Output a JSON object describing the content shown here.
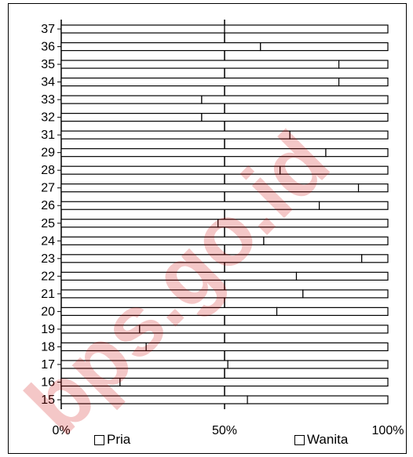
{
  "chart_data": {
    "type": "bar",
    "stacked": "percent",
    "orientation": "horizontal",
    "categories": [
      "15",
      "16",
      "17",
      "18",
      "19",
      "20",
      "21",
      "22",
      "23",
      "24",
      "25",
      "26",
      "27",
      "28",
      "29",
      "31",
      "32",
      "33",
      "34",
      "35",
      "36",
      "37"
    ],
    "series": [
      {
        "name": "Pria",
        "values": [
          57,
          18,
          51,
          26,
          24,
          66,
          74,
          72,
          92,
          62,
          48,
          79,
          91,
          67,
          81,
          70,
          43,
          43,
          85,
          85,
          61,
          50
        ]
      },
      {
        "name": "Wanita",
        "values": [
          43,
          82,
          49,
          74,
          76,
          34,
          26,
          28,
          8,
          38,
          52,
          21,
          9,
          33,
          19,
          30,
          57,
          57,
          15,
          15,
          39,
          50
        ]
      }
    ],
    "x_ticks": [
      "0%",
      "50%",
      "100%"
    ],
    "xlim": [
      0,
      100
    ],
    "grid": "vertical at 50%",
    "legend_position": "bottom",
    "colors": {
      "Pria": "#ffffff",
      "Wanita": "#ffffff",
      "stroke": "#000000"
    },
    "watermark": "bps.go.id"
  }
}
